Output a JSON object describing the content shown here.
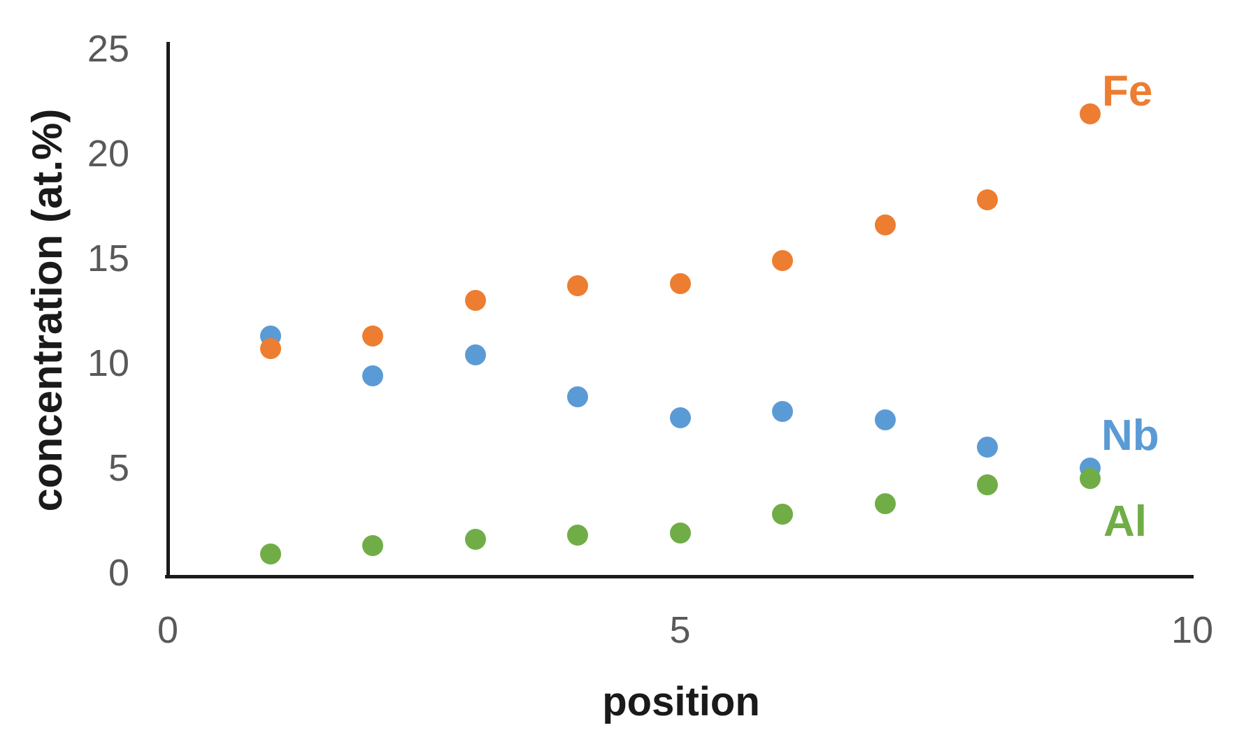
{
  "chart_data": {
    "type": "scatter",
    "x": [
      1,
      2,
      3,
      4,
      5,
      6,
      7,
      8,
      9
    ],
    "series": [
      {
        "name": "Fe",
        "color": "#ED7D31",
        "values": [
          10.7,
          11.3,
          13.0,
          13.7,
          13.8,
          14.9,
          16.6,
          17.8,
          21.9
        ]
      },
      {
        "name": "Nb",
        "color": "#5B9BD5",
        "values": [
          11.3,
          9.4,
          10.4,
          8.4,
          7.4,
          7.7,
          7.3,
          6.0,
          5.0
        ]
      },
      {
        "name": "Al",
        "color": "#70AD47",
        "values": [
          0.9,
          1.3,
          1.6,
          1.8,
          1.9,
          2.8,
          3.3,
          4.2,
          4.5
        ]
      }
    ],
    "xlabel": "position",
    "ylabel": "concentration (at.%)",
    "xlim": [
      0,
      10
    ],
    "ylim": [
      0,
      25
    ],
    "x_ticks": [
      0,
      5,
      10
    ],
    "y_ticks": [
      0,
      5,
      10,
      15,
      20,
      25
    ],
    "grid": false,
    "legend_position": "inline labels right of last points",
    "marker": "filled-circle"
  },
  "colors": {
    "background": "#ffffff",
    "axis_line": "#1a1a1a",
    "tick_label": "#595959",
    "axis_title": "#1a1a1a"
  }
}
